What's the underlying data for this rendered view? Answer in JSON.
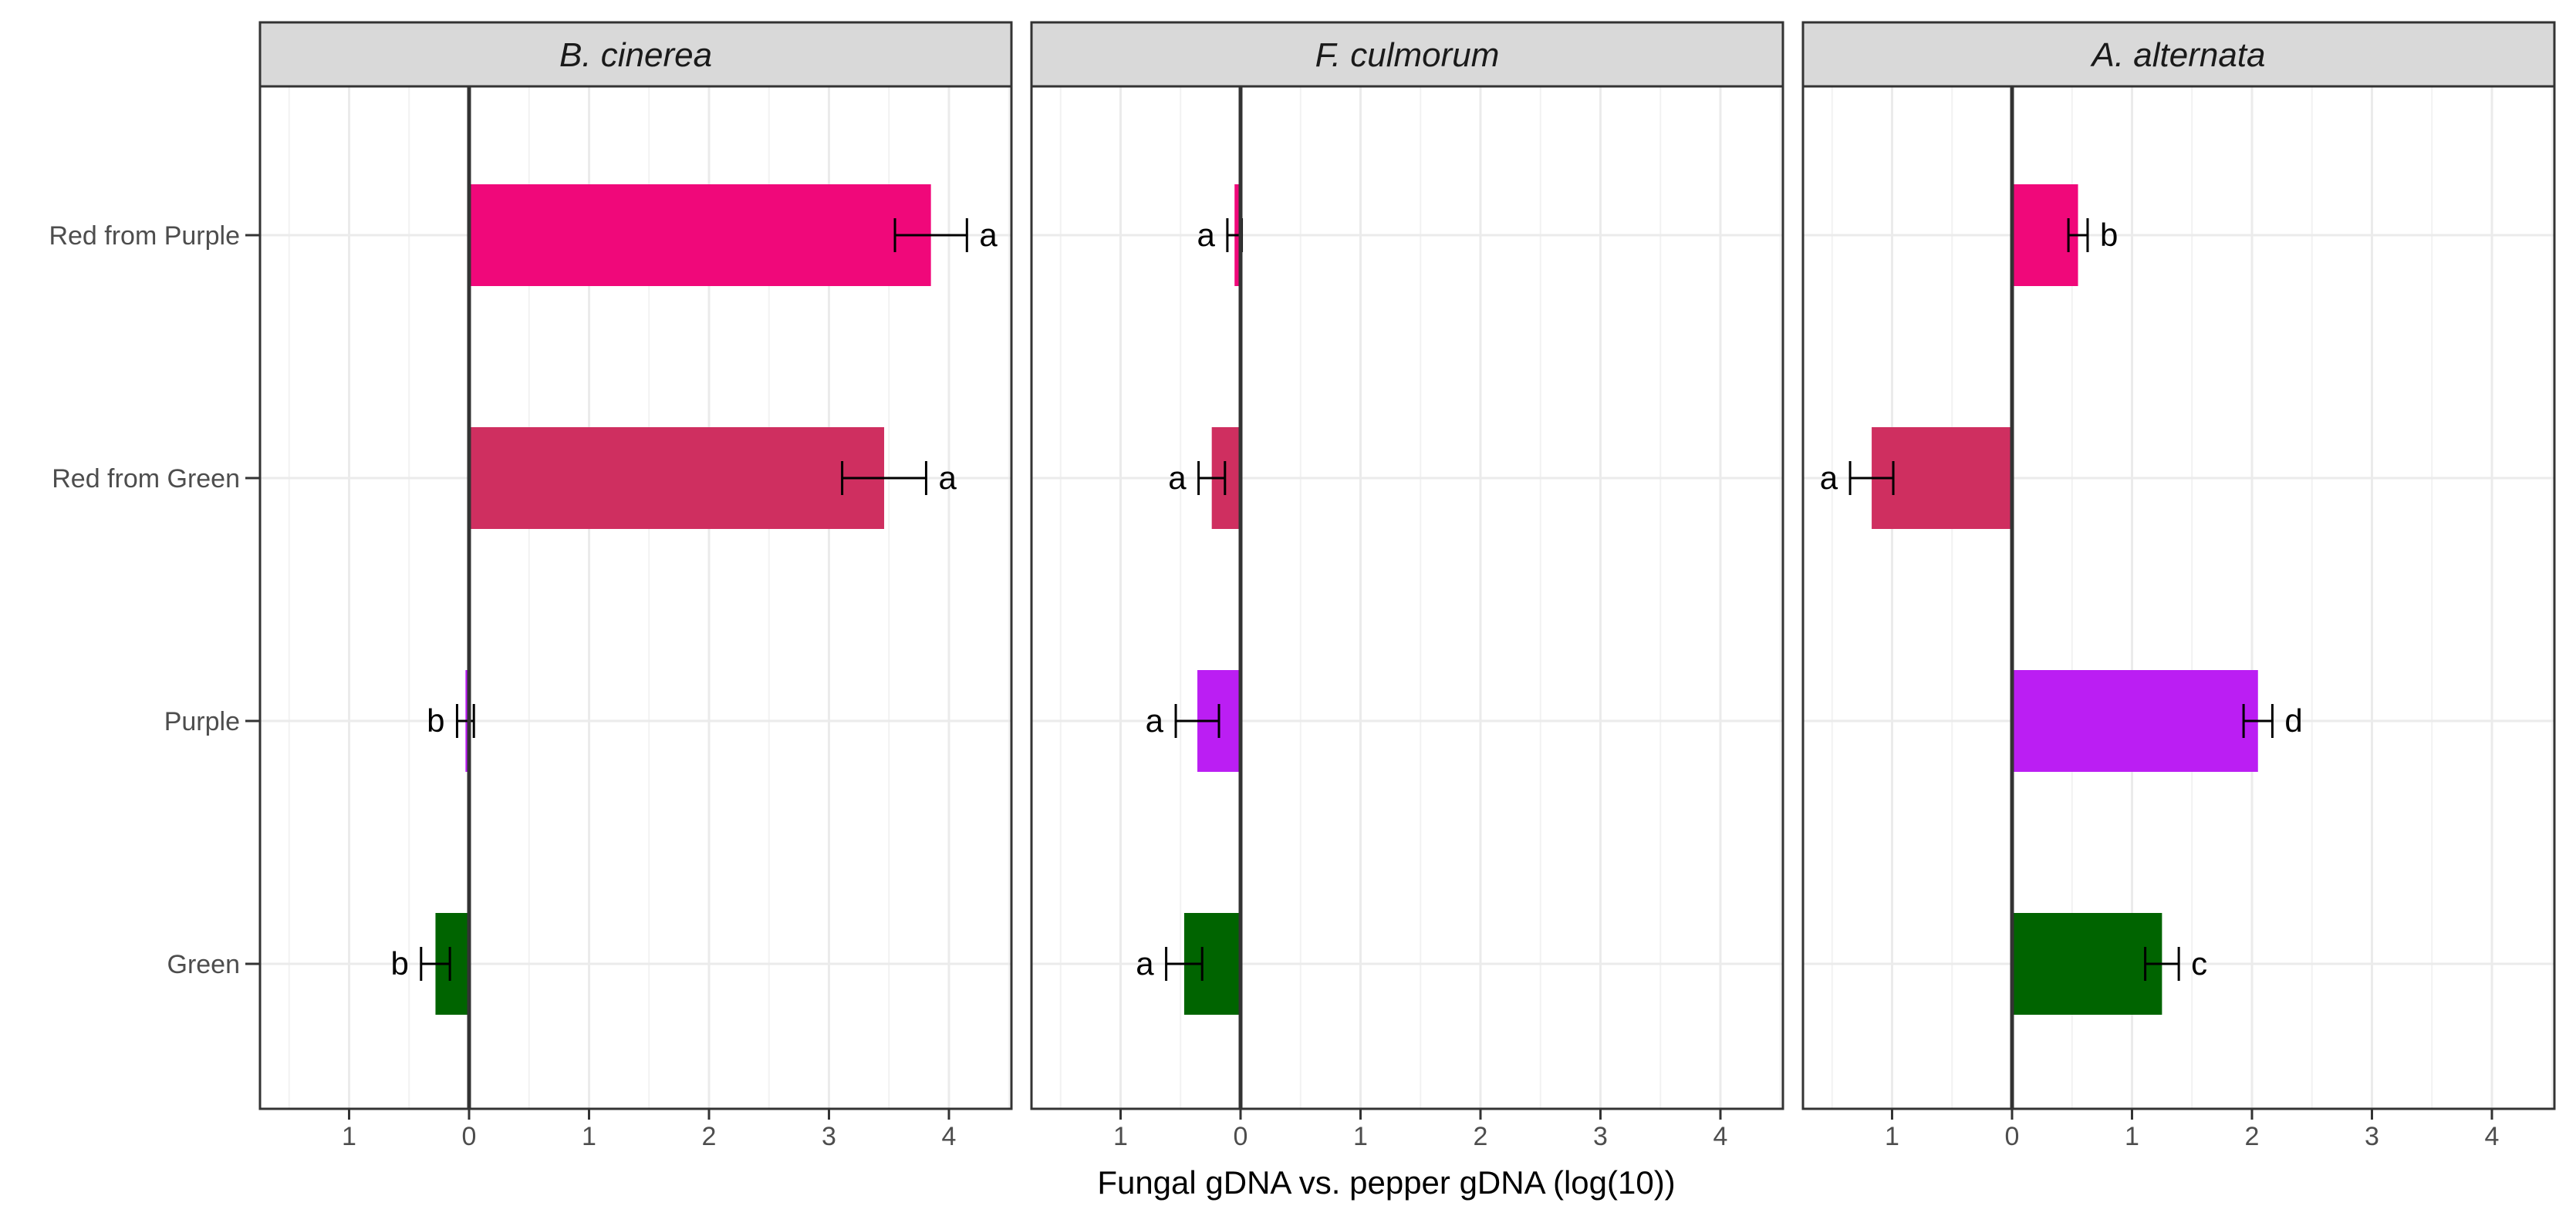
{
  "chart_data": {
    "type": "bar",
    "orientation": "horizontal",
    "xlabel": "Fungal gDNA vs. pepper gDNA (log(10))",
    "ylabel": "",
    "xlim": [
      -1.75,
      4.5
    ],
    "x_ticks": [
      -1,
      0,
      1,
      2,
      3,
      4
    ],
    "x_tick_labels": [
      "1",
      "0",
      "1",
      "2",
      "3",
      "4"
    ],
    "categories": [
      "Red from Purple",
      "Red from Green",
      "Purple",
      "Green"
    ],
    "category_colors": {
      "Red from Purple": "#f0087a",
      "Red from Green": "#cf2f60",
      "Purple": "#bb1ef3",
      "Green": "#006400"
    },
    "panels": [
      {
        "title": "B. cinerea",
        "series": [
          {
            "category": "Red from Purple",
            "value": 3.85,
            "error": 0.3,
            "letter": "a"
          },
          {
            "category": "Red from Green",
            "value": 3.46,
            "error": 0.35,
            "letter": "a"
          },
          {
            "category": "Purple",
            "value": -0.03,
            "error": 0.07,
            "letter": "b"
          },
          {
            "category": "Green",
            "value": -0.28,
            "error": 0.12,
            "letter": "b"
          }
        ]
      },
      {
        "title": "F. culmorum",
        "series": [
          {
            "category": "Red from Purple",
            "value": -0.05,
            "error": 0.06,
            "letter": "a"
          },
          {
            "category": "Red from Green",
            "value": -0.24,
            "error": 0.11,
            "letter": "a"
          },
          {
            "category": "Purple",
            "value": -0.36,
            "error": 0.18,
            "letter": "a"
          },
          {
            "category": "Green",
            "value": -0.47,
            "error": 0.15,
            "letter": "a"
          }
        ]
      },
      {
        "title": "A. alternata",
        "series": [
          {
            "category": "Red from Purple",
            "value": 0.55,
            "error": 0.08,
            "letter": "b"
          },
          {
            "category": "Red from Green",
            "value": -1.17,
            "error": 0.18,
            "letter": "a"
          },
          {
            "category": "Purple",
            "value": 2.05,
            "error": 0.12,
            "letter": "d"
          },
          {
            "category": "Green",
            "value": 1.25,
            "error": 0.14,
            "letter": "c"
          }
        ]
      }
    ]
  }
}
